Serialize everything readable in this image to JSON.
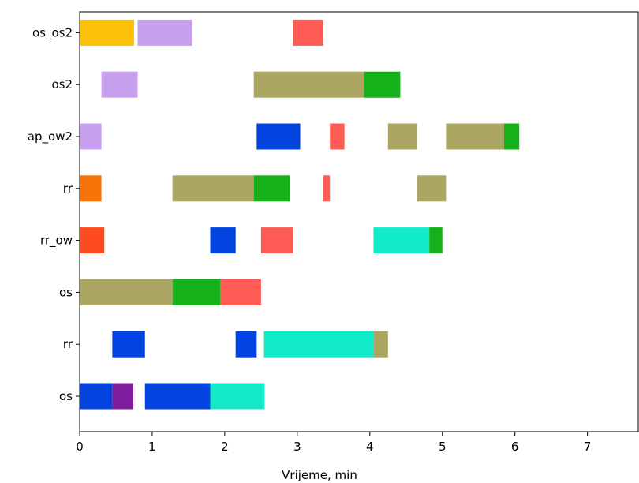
{
  "chart_data": {
    "type": "gantt",
    "title": "",
    "xlabel": "Vrijeme, min",
    "ylabel": "",
    "xlim": [
      0,
      7.7
    ],
    "xticks": [
      0,
      1,
      2,
      3,
      4,
      5,
      6,
      7
    ],
    "grid": false,
    "rows": [
      "os",
      "rr",
      "os",
      "rr_ow",
      "rr",
      "ap_ow2",
      "os2",
      "os_os2"
    ],
    "bars": [
      {
        "row": 0,
        "start": 0.0,
        "end": 0.45,
        "color": "#0343df"
      },
      {
        "row": 0,
        "start": 0.45,
        "end": 0.74,
        "color": "#7e1e9c"
      },
      {
        "row": 0,
        "start": 0.9,
        "end": 1.8,
        "color": "#0343df"
      },
      {
        "row": 0,
        "start": 1.8,
        "end": 2.55,
        "color": "#13eac9"
      },
      {
        "row": 1,
        "start": 0.45,
        "end": 0.9,
        "color": "#0343df"
      },
      {
        "row": 1,
        "start": 2.15,
        "end": 2.44,
        "color": "#0343df"
      },
      {
        "row": 1,
        "start": 2.54,
        "end": 4.05,
        "color": "#13eac9"
      },
      {
        "row": 1,
        "start": 4.05,
        "end": 4.25,
        "color": "#aaa662"
      },
      {
        "row": 2,
        "start": 0.0,
        "end": 1.28,
        "color": "#aaa662"
      },
      {
        "row": 2,
        "start": 1.28,
        "end": 1.94,
        "color": "#15b01a"
      },
      {
        "row": 2,
        "start": 1.94,
        "end": 2.5,
        "color": "#ff5b55"
      },
      {
        "row": 3,
        "start": 0.0,
        "end": 0.34,
        "color": "#fe4b1f"
      },
      {
        "row": 3,
        "start": 1.8,
        "end": 2.15,
        "color": "#0343df"
      },
      {
        "row": 3,
        "start": 2.5,
        "end": 2.94,
        "color": "#ff5b55"
      },
      {
        "row": 3,
        "start": 4.05,
        "end": 4.82,
        "color": "#13eac9"
      },
      {
        "row": 3,
        "start": 4.82,
        "end": 5.0,
        "color": "#15b01a"
      },
      {
        "row": 4,
        "start": 0.0,
        "end": 0.3,
        "color": "#f97306"
      },
      {
        "row": 4,
        "start": 1.28,
        "end": 2.4,
        "color": "#aaa662"
      },
      {
        "row": 4,
        "start": 2.4,
        "end": 2.9,
        "color": "#15b01a"
      },
      {
        "row": 4,
        "start": 3.36,
        "end": 3.45,
        "color": "#ff5b55"
      },
      {
        "row": 4,
        "start": 4.65,
        "end": 5.05,
        "color": "#aaa662"
      },
      {
        "row": 5,
        "start": 0.0,
        "end": 0.3,
        "color": "#c79fef"
      },
      {
        "row": 5,
        "start": 2.44,
        "end": 3.04,
        "color": "#0343df"
      },
      {
        "row": 5,
        "start": 3.45,
        "end": 3.65,
        "color": "#ff5b55"
      },
      {
        "row": 5,
        "start": 4.25,
        "end": 4.65,
        "color": "#aaa662"
      },
      {
        "row": 5,
        "start": 5.05,
        "end": 5.85,
        "color": "#aaa662"
      },
      {
        "row": 5,
        "start": 5.85,
        "end": 6.06,
        "color": "#15b01a"
      },
      {
        "row": 6,
        "start": 0.3,
        "end": 0.8,
        "color": "#c79fef"
      },
      {
        "row": 6,
        "start": 2.4,
        "end": 3.92,
        "color": "#aaa662"
      },
      {
        "row": 6,
        "start": 3.92,
        "end": 4.42,
        "color": "#15b01a"
      },
      {
        "row": 7,
        "start": 0.0,
        "end": 0.75,
        "color": "#fcc006"
      },
      {
        "row": 7,
        "start": 0.8,
        "end": 1.55,
        "color": "#c79fef"
      },
      {
        "row": 7,
        "start": 2.94,
        "end": 3.36,
        "color": "#ff5b55"
      }
    ]
  }
}
